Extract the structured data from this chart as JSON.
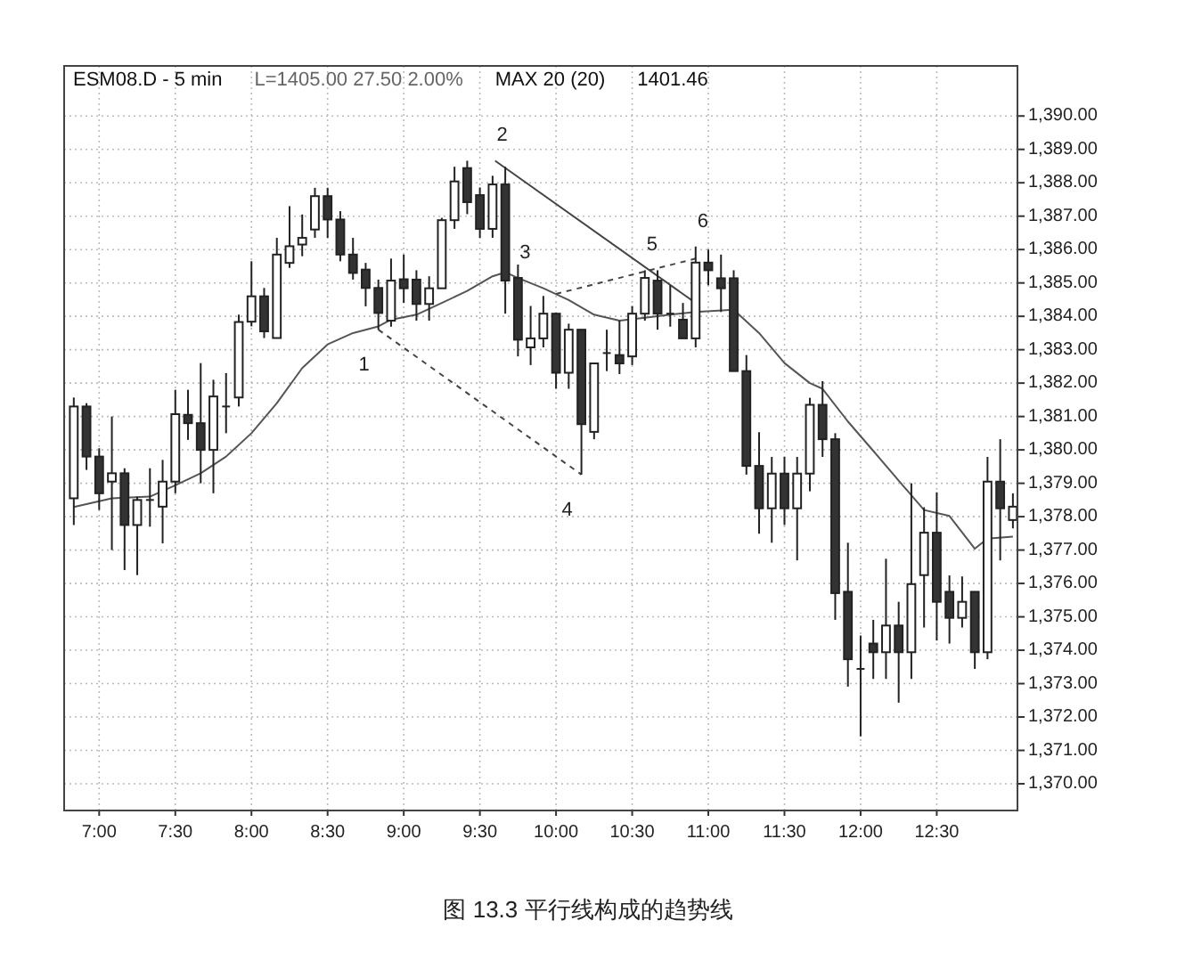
{
  "chart_data": {
    "type": "candlestick",
    "x": [
      6.8333,
      6.9167,
      7.0,
      7.0833,
      7.1667,
      7.25,
      7.3333,
      7.4167,
      7.5,
      7.5833,
      7.6667,
      7.75,
      7.8333,
      7.9167,
      8.0,
      8.0833,
      8.1667,
      8.25,
      8.3333,
      8.4167,
      8.5,
      8.5833,
      8.6667,
      8.75,
      8.8333,
      8.9167,
      9.0,
      9.0833,
      9.1667,
      9.25,
      9.3333,
      9.4167,
      9.5,
      9.5833,
      9.6667,
      9.75,
      9.8333,
      9.9167,
      10.0,
      10.0833,
      10.1667,
      10.25,
      10.3333,
      10.4167,
      10.5,
      10.5833,
      10.6667,
      10.75,
      10.8333,
      10.9167,
      11.0,
      11.0833,
      11.1667,
      11.25,
      11.3333,
      11.4167,
      11.5,
      11.5833,
      11.6667,
      11.75,
      11.8333,
      11.9167,
      12.0,
      12.0833,
      12.1667,
      12.25,
      12.3333,
      12.4167,
      12.5,
      12.5833,
      12.6667,
      12.75,
      12.8333,
      12.9167,
      13.0
    ],
    "ohlc": [
      [
        1378.55,
        1381.57,
        1377.75,
        1381.3
      ],
      [
        1381.3,
        1381.4,
        1379.4,
        1379.8
      ],
      [
        1379.8,
        1380.05,
        1378.2,
        1378.7
      ],
      [
        1379.05,
        1381.0,
        1377.0,
        1379.3
      ],
      [
        1379.3,
        1379.45,
        1376.4,
        1377.75
      ],
      [
        1377.75,
        1378.6,
        1376.25,
        1378.5
      ],
      [
        1378.5,
        1379.45,
        1377.7,
        1378.5
      ],
      [
        1378.3,
        1379.7,
        1377.2,
        1379.05
      ],
      [
        1379.05,
        1381.8,
        1378.7,
        1381.07
      ],
      [
        1381.05,
        1381.8,
        1380.3,
        1380.8
      ],
      [
        1380.8,
        1382.6,
        1379.0,
        1380.0
      ],
      [
        1380.0,
        1382.1,
        1378.7,
        1381.6
      ],
      [
        1381.3,
        1382.3,
        1380.5,
        1381.3
      ],
      [
        1381.57,
        1384.05,
        1381.3,
        1383.83
      ],
      [
        1383.84,
        1385.65,
        1383.7,
        1384.6
      ],
      [
        1384.6,
        1384.85,
        1383.35,
        1383.55
      ],
      [
        1383.35,
        1386.35,
        1383.35,
        1385.85
      ],
      [
        1385.6,
        1387.3,
        1385.45,
        1386.1
      ],
      [
        1386.15,
        1387.05,
        1385.8,
        1386.35
      ],
      [
        1386.6,
        1387.85,
        1386.35,
        1387.6
      ],
      [
        1387.6,
        1387.85,
        1386.35,
        1386.9
      ],
      [
        1386.9,
        1387.15,
        1385.65,
        1385.85
      ],
      [
        1385.85,
        1386.35,
        1385.1,
        1385.3
      ],
      [
        1385.4,
        1385.6,
        1384.3,
        1384.85
      ],
      [
        1384.85,
        1385.1,
        1383.6,
        1384.1
      ],
      [
        1383.87,
        1385.73,
        1383.69,
        1385.07
      ],
      [
        1385.11,
        1385.85,
        1384.4,
        1384.84
      ],
      [
        1385.1,
        1385.38,
        1383.87,
        1384.37
      ],
      [
        1384.37,
        1385.2,
        1383.87,
        1384.84
      ],
      [
        1384.84,
        1386.95,
        1384.84,
        1386.88
      ],
      [
        1386.88,
        1388.48,
        1386.62,
        1388.04
      ],
      [
        1388.44,
        1388.66,
        1387.06,
        1387.42
      ],
      [
        1387.63,
        1387.86,
        1386.35,
        1386.62
      ],
      [
        1386.62,
        1388.21,
        1386.35,
        1387.95
      ],
      [
        1387.95,
        1388.48,
        1384.08,
        1385.07
      ],
      [
        1385.15,
        1385.55,
        1382.8,
        1383.3
      ],
      [
        1383.07,
        1384.31,
        1382.54,
        1383.34
      ],
      [
        1383.34,
        1384.61,
        1383.07,
        1384.08
      ],
      [
        1384.08,
        1384.1,
        1381.83,
        1382.31
      ],
      [
        1382.31,
        1383.78,
        1381.83,
        1383.6
      ],
      [
        1383.6,
        1383.6,
        1379.26,
        1380.77
      ],
      [
        1380.54,
        1382.59,
        1380.32,
        1382.59
      ],
      [
        1382.9,
        1383.6,
        1382.36,
        1382.9
      ],
      [
        1382.84,
        1383.87,
        1382.27,
        1382.59
      ],
      [
        1382.8,
        1384.31,
        1382.54,
        1384.08
      ],
      [
        1384.08,
        1385.38,
        1383.87,
        1385.15
      ],
      [
        1385.07,
        1385.38,
        1383.6,
        1384.08
      ],
      [
        1384.08,
        1384.93,
        1383.69,
        1384.08
      ],
      [
        1383.9,
        1384.4,
        1383.34,
        1383.34
      ],
      [
        1383.34,
        1386.09,
        1383.07,
        1385.61
      ],
      [
        1385.61,
        1386.0,
        1384.93,
        1385.38
      ],
      [
        1385.14,
        1385.85,
        1384.13,
        1384.84
      ],
      [
        1385.14,
        1385.38,
        1382.36,
        1382.36
      ],
      [
        1382.36,
        1382.84,
        1379.26,
        1379.52
      ],
      [
        1379.52,
        1380.53,
        1377.49,
        1378.25
      ],
      [
        1378.25,
        1379.79,
        1377.22,
        1379.29
      ],
      [
        1379.29,
        1379.79,
        1377.75,
        1378.25
      ],
      [
        1378.25,
        1379.79,
        1376.69,
        1379.29
      ],
      [
        1379.29,
        1381.56,
        1378.76,
        1381.35
      ],
      [
        1381.35,
        1382.06,
        1379.79,
        1380.32
      ],
      [
        1380.32,
        1380.5,
        1374.91,
        1375.71
      ],
      [
        1375.75,
        1377.22,
        1372.91,
        1373.73
      ],
      [
        1373.44,
        1374.44,
        1371.42,
        1373.44
      ],
      [
        1374.2,
        1374.91,
        1373.14,
        1373.94
      ],
      [
        1373.94,
        1376.74,
        1373.14,
        1374.74
      ],
      [
        1374.74,
        1375.45,
        1372.43,
        1373.94
      ],
      [
        1373.94,
        1379.0,
        1373.14,
        1375.98
      ],
      [
        1376.25,
        1378.28,
        1374.68,
        1377.52
      ],
      [
        1377.52,
        1378.73,
        1374.29,
        1375.45
      ],
      [
        1375.75,
        1376.24,
        1374.2,
        1374.97
      ],
      [
        1374.97,
        1376.21,
        1374.68,
        1375.45
      ],
      [
        1375.75,
        1375.75,
        1373.44,
        1373.94
      ],
      [
        1373.94,
        1379.79,
        1373.73,
        1379.05
      ],
      [
        1379.05,
        1380.32,
        1376.69,
        1378.25
      ],
      [
        1377.9,
        1378.7,
        1377.65,
        1378.3
      ]
    ],
    "series": [
      {
        "name": "MAX 20 (20)",
        "type": "line",
        "color": "#555555",
        "line_style": "solid",
        "x": [
          6.8333,
          7.0833,
          7.3333,
          7.5,
          7.6667,
          7.8333,
          8.0,
          8.1667,
          8.3333,
          8.5,
          8.6667,
          8.8333,
          8.9167,
          9.0833,
          9.25,
          9.4167,
          9.5833,
          9.6667,
          9.75,
          9.9167,
          10.0833,
          10.25,
          10.4167,
          10.5833,
          10.75,
          10.9167,
          11.1667,
          11.3333,
          11.5,
          11.6667,
          11.75,
          11.9167,
          12.0833,
          12.25,
          12.4167,
          12.5833,
          12.75,
          12.8333,
          13.0
        ],
        "values": [
          1378.29,
          1378.55,
          1378.6,
          1378.94,
          1379.3,
          1379.8,
          1380.5,
          1381.4,
          1382.45,
          1383.16,
          1383.5,
          1383.7,
          1383.9,
          1384.05,
          1384.4,
          1384.76,
          1385.2,
          1385.32,
          1385.15,
          1384.84,
          1384.49,
          1384.05,
          1383.87,
          1383.96,
          1384.05,
          1384.13,
          1384.2,
          1383.5,
          1382.6,
          1382.0,
          1381.83,
          1380.85,
          1379.97,
          1379.08,
          1378.2,
          1378.02,
          1377.04,
          1377.34,
          1377.4
        ]
      },
      {
        "type": "line",
        "color": "#444444",
        "line_style": "solid",
        "x": [
          9.6,
          10.9167
        ],
        "values": [
          1388.66,
          1384.4
        ]
      },
      {
        "type": "line",
        "color": "#444444",
        "line_style": "dashed",
        "x": [
          8.8333,
          10.1667
        ],
        "values": [
          1383.6,
          1379.26
        ]
      },
      {
        "type": "line",
        "color": "#444444",
        "line_style": "dashed",
        "x": [
          10.0,
          10.9167
        ],
        "values": [
          1384.67,
          1385.73
        ]
      }
    ],
    "xlim": [
      6.77,
      13.03
    ],
    "ylim": [
      1369.2,
      1391.5
    ],
    "xticks": [
      {
        "value": 7.0,
        "label": "7:00"
      },
      {
        "value": 7.5,
        "label": "7:30"
      },
      {
        "value": 8.0,
        "label": "8:00"
      },
      {
        "value": 8.5,
        "label": "8:30"
      },
      {
        "value": 9.0,
        "label": "9:00"
      },
      {
        "value": 9.5,
        "label": "9:30"
      },
      {
        "value": 10.0,
        "label": "10:00"
      },
      {
        "value": 10.5,
        "label": "10:30"
      },
      {
        "value": 11.0,
        "label": "11:00"
      },
      {
        "value": 11.5,
        "label": "11:30"
      },
      {
        "value": 12.0,
        "label": "12:00"
      },
      {
        "value": 12.5,
        "label": "12:30"
      }
    ],
    "yticks": [
      {
        "value": 1370,
        "label": "1,370.00"
      },
      {
        "value": 1371,
        "label": "1,371.00"
      },
      {
        "value": 1372,
        "label": "1,372.00"
      },
      {
        "value": 1373,
        "label": "1,373.00"
      },
      {
        "value": 1374,
        "label": "1,374.00"
      },
      {
        "value": 1375,
        "label": "1,375.00"
      },
      {
        "value": 1376,
        "label": "1,376.00"
      },
      {
        "value": 1377,
        "label": "1,377.00"
      },
      {
        "value": 1378,
        "label": "1,378.00"
      },
      {
        "value": 1379,
        "label": "1,379.00"
      },
      {
        "value": 1380,
        "label": "1,380.00"
      },
      {
        "value": 1381,
        "label": "1,381.00"
      },
      {
        "value": 1382,
        "label": "1,382.00"
      },
      {
        "value": 1383,
        "label": "1,383.00"
      },
      {
        "value": 1384,
        "label": "1,384.00"
      },
      {
        "value": 1385,
        "label": "1,385.00"
      },
      {
        "value": 1386,
        "label": "1,386.00"
      },
      {
        "value": 1387,
        "label": "1,387.00"
      },
      {
        "value": 1388,
        "label": "1,388.00"
      },
      {
        "value": 1389,
        "label": "1,389.00"
      },
      {
        "value": 1390,
        "label": "1,390.00"
      }
    ],
    "grid": true,
    "annotations": [
      "ESM08.D - 5 min",
      "L=1405.00 27.50 2.00%",
      "1401.46",
      {
        "text": "1",
        "x": 8.8333,
        "y": 1383.6
      },
      {
        "text": "2",
        "x": 9.6,
        "y": 1388.66
      },
      {
        "text": "3",
        "x": 9.75,
        "y": 1385.15
      },
      {
        "text": "4",
        "x": 10.1667,
        "y": 1379.26
      },
      {
        "text": "5",
        "x": 10.5833,
        "y": 1385.38
      },
      {
        "text": "6",
        "x": 10.9167,
        "y": 1386.09
      },
      "图 13.3  平行线构成的趋势线"
    ]
  }
}
